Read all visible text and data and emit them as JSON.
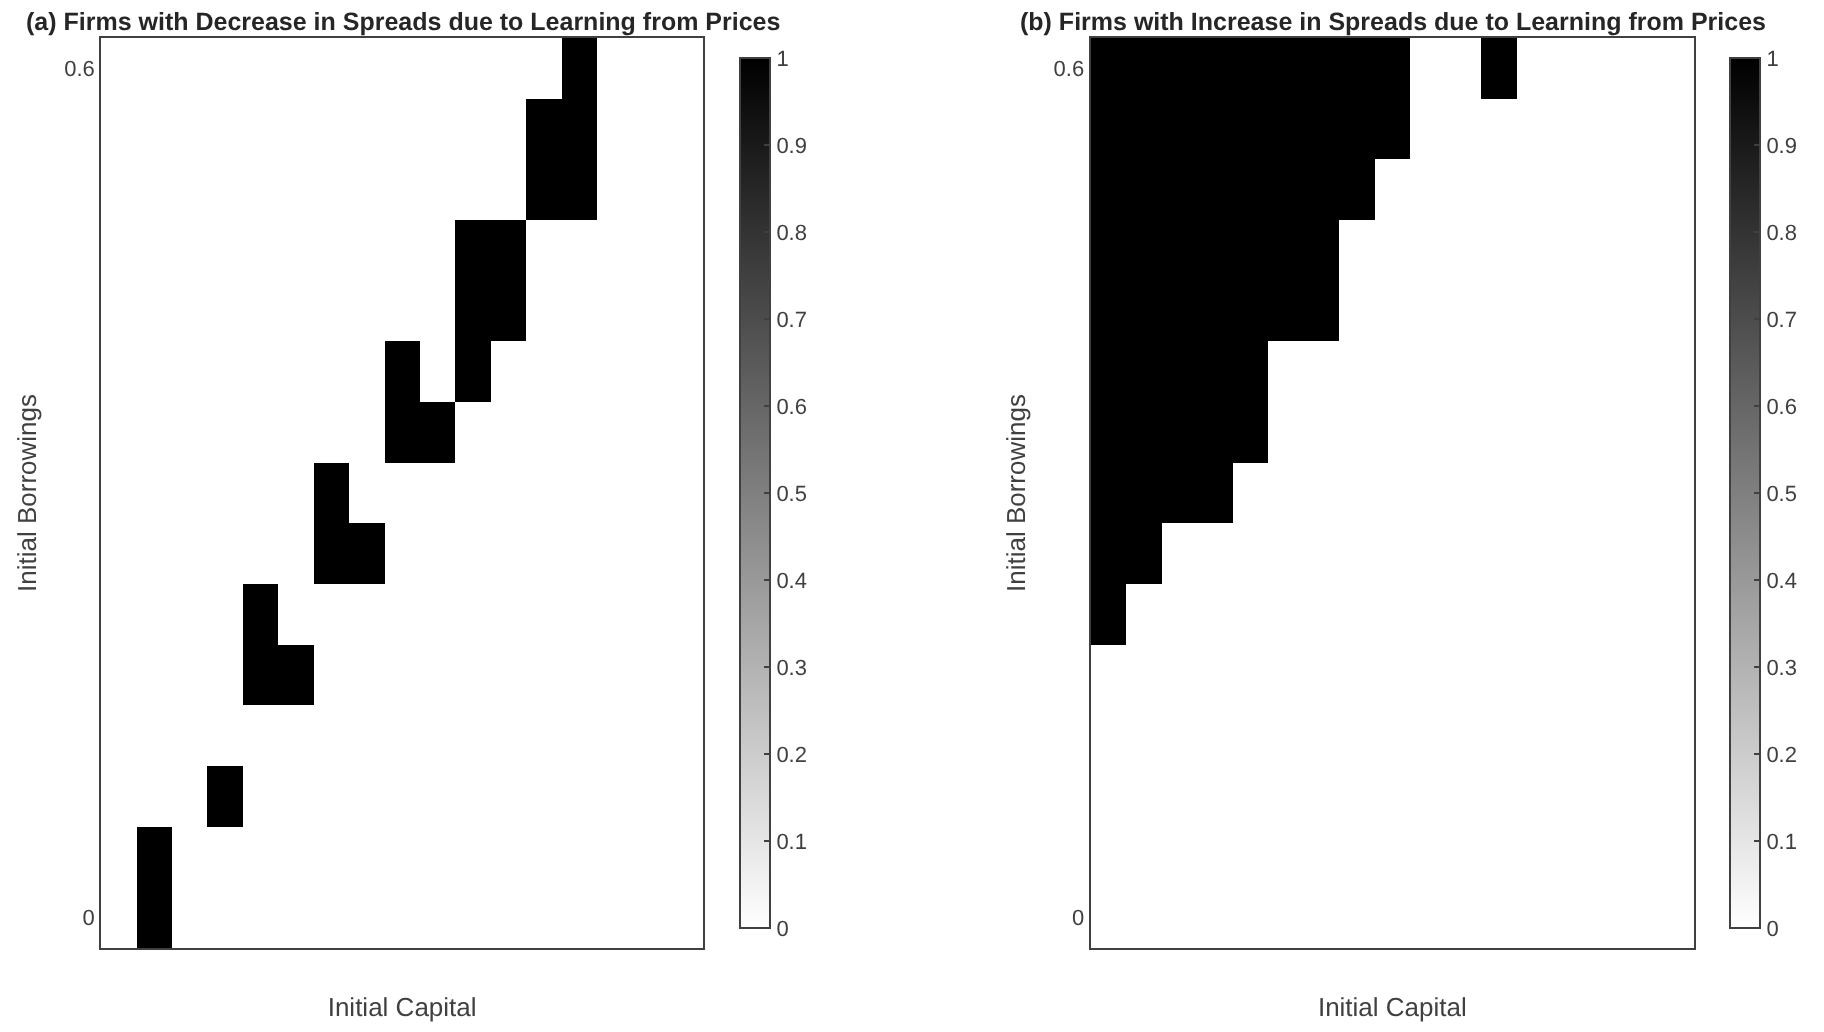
{
  "chart_data": [
    {
      "type": "heatmap",
      "title": "(a) Firms with Decrease in Spreads due to Learning from Prices",
      "xlabel": "Initial Capital",
      "ylabel": "Initial Borrowings",
      "categories": [
        null,
        null,
        null,
        null,
        null,
        null,
        null,
        null,
        null,
        null,
        null,
        null,
        null,
        null,
        null,
        null,
        null
      ],
      "y_categories": [
        "0.6",
        null,
        null,
        null,
        null,
        null,
        null,
        null,
        null,
        null,
        null,
        null,
        null,
        null,
        "0"
      ],
      "cells": [
        [
          0,
          0,
          0,
          0,
          0,
          0,
          0,
          0,
          0,
          0,
          0,
          0,
          0,
          1,
          0,
          0,
          0
        ],
        [
          0,
          0,
          0,
          0,
          0,
          0,
          0,
          0,
          0,
          0,
          0,
          0,
          1,
          1,
          0,
          0,
          0
        ],
        [
          0,
          0,
          0,
          0,
          0,
          0,
          0,
          0,
          0,
          0,
          0,
          0,
          1,
          1,
          0,
          0,
          0
        ],
        [
          0,
          0,
          0,
          0,
          0,
          0,
          0,
          0,
          0,
          0,
          1,
          1,
          0,
          0,
          0,
          0,
          0
        ],
        [
          0,
          0,
          0,
          0,
          0,
          0,
          0,
          0,
          0,
          0,
          1,
          1,
          0,
          0,
          0,
          0,
          0
        ],
        [
          0,
          0,
          0,
          0,
          0,
          0,
          0,
          0,
          1,
          0,
          1,
          0,
          0,
          0,
          0,
          0,
          0
        ],
        [
          0,
          0,
          0,
          0,
          0,
          0,
          0,
          0,
          1,
          1,
          0,
          0,
          0,
          0,
          0,
          0,
          0
        ],
        [
          0,
          0,
          0,
          0,
          0,
          0,
          1,
          0,
          0,
          0,
          0,
          0,
          0,
          0,
          0,
          0,
          0
        ],
        [
          0,
          0,
          0,
          0,
          0,
          0,
          1,
          1,
          0,
          0,
          0,
          0,
          0,
          0,
          0,
          0,
          0
        ],
        [
          0,
          0,
          0,
          0,
          1,
          0,
          0,
          0,
          0,
          0,
          0,
          0,
          0,
          0,
          0,
          0,
          0
        ],
        [
          0,
          0,
          0,
          0,
          1,
          1,
          0,
          0,
          0,
          0,
          0,
          0,
          0,
          0,
          0,
          0,
          0
        ],
        [
          0,
          0,
          0,
          0,
          0,
          0,
          0,
          0,
          0,
          0,
          0,
          0,
          0,
          0,
          0,
          0,
          0
        ],
        [
          0,
          0,
          0,
          1,
          0,
          0,
          0,
          0,
          0,
          0,
          0,
          0,
          0,
          0,
          0,
          0,
          0
        ],
        [
          0,
          1,
          0,
          0,
          0,
          0,
          0,
          0,
          0,
          0,
          0,
          0,
          0,
          0,
          0,
          0,
          0
        ],
        [
          0,
          1,
          0,
          0,
          0,
          0,
          0,
          0,
          0,
          0,
          0,
          0,
          0,
          0,
          0,
          0,
          0
        ]
      ],
      "clim": [
        0,
        1
      ],
      "cticks": [
        0,
        0.1,
        0.2,
        0.3,
        0.4,
        0.5,
        0.6,
        0.7,
        0.8,
        0.9,
        1
      ]
    },
    {
      "type": "heatmap",
      "title": "(b) Firms with Increase in Spreads due to Learning from Prices",
      "xlabel": "Initial Capital",
      "ylabel": "Initial Borrowings",
      "categories": [
        null,
        null,
        null,
        null,
        null,
        null,
        null,
        null,
        null,
        null,
        null,
        null,
        null,
        null,
        null,
        null,
        null
      ],
      "y_categories": [
        "0.6",
        null,
        null,
        null,
        null,
        null,
        null,
        null,
        null,
        null,
        null,
        null,
        null,
        null,
        "0"
      ],
      "cells": [
        [
          1,
          1,
          1,
          1,
          1,
          1,
          1,
          1,
          1,
          0,
          0,
          1,
          0,
          0,
          0,
          0,
          0
        ],
        [
          1,
          1,
          1,
          1,
          1,
          1,
          1,
          1,
          1,
          0,
          0,
          0,
          0,
          0,
          0,
          0,
          0
        ],
        [
          1,
          1,
          1,
          1,
          1,
          1,
          1,
          1,
          0,
          0,
          0,
          0,
          0,
          0,
          0,
          0,
          0
        ],
        [
          1,
          1,
          1,
          1,
          1,
          1,
          1,
          0,
          0,
          0,
          0,
          0,
          0,
          0,
          0,
          0,
          0
        ],
        [
          1,
          1,
          1,
          1,
          1,
          1,
          1,
          0,
          0,
          0,
          0,
          0,
          0,
          0,
          0,
          0,
          0
        ],
        [
          1,
          1,
          1,
          1,
          1,
          0,
          0,
          0,
          0,
          0,
          0,
          0,
          0,
          0,
          0,
          0,
          0
        ],
        [
          1,
          1,
          1,
          1,
          1,
          0,
          0,
          0,
          0,
          0,
          0,
          0,
          0,
          0,
          0,
          0,
          0
        ],
        [
          1,
          1,
          1,
          1,
          0,
          0,
          0,
          0,
          0,
          0,
          0,
          0,
          0,
          0,
          0,
          0,
          0
        ],
        [
          1,
          1,
          0,
          0,
          0,
          0,
          0,
          0,
          0,
          0,
          0,
          0,
          0,
          0,
          0,
          0,
          0
        ],
        [
          1,
          0,
          0,
          0,
          0,
          0,
          0,
          0,
          0,
          0,
          0,
          0,
          0,
          0,
          0,
          0,
          0
        ],
        [
          0,
          0,
          0,
          0,
          0,
          0,
          0,
          0,
          0,
          0,
          0,
          0,
          0,
          0,
          0,
          0,
          0
        ],
        [
          0,
          0,
          0,
          0,
          0,
          0,
          0,
          0,
          0,
          0,
          0,
          0,
          0,
          0,
          0,
          0,
          0
        ],
        [
          0,
          0,
          0,
          0,
          0,
          0,
          0,
          0,
          0,
          0,
          0,
          0,
          0,
          0,
          0,
          0,
          0
        ],
        [
          0,
          0,
          0,
          0,
          0,
          0,
          0,
          0,
          0,
          0,
          0,
          0,
          0,
          0,
          0,
          0,
          0
        ],
        [
          0,
          0,
          0,
          0,
          0,
          0,
          0,
          0,
          0,
          0,
          0,
          0,
          0,
          0,
          0,
          0,
          0
        ]
      ],
      "clim": [
        0,
        1
      ],
      "cticks": [
        0,
        0.1,
        0.2,
        0.3,
        0.4,
        0.5,
        0.6,
        0.7,
        0.8,
        0.9,
        1
      ]
    }
  ]
}
